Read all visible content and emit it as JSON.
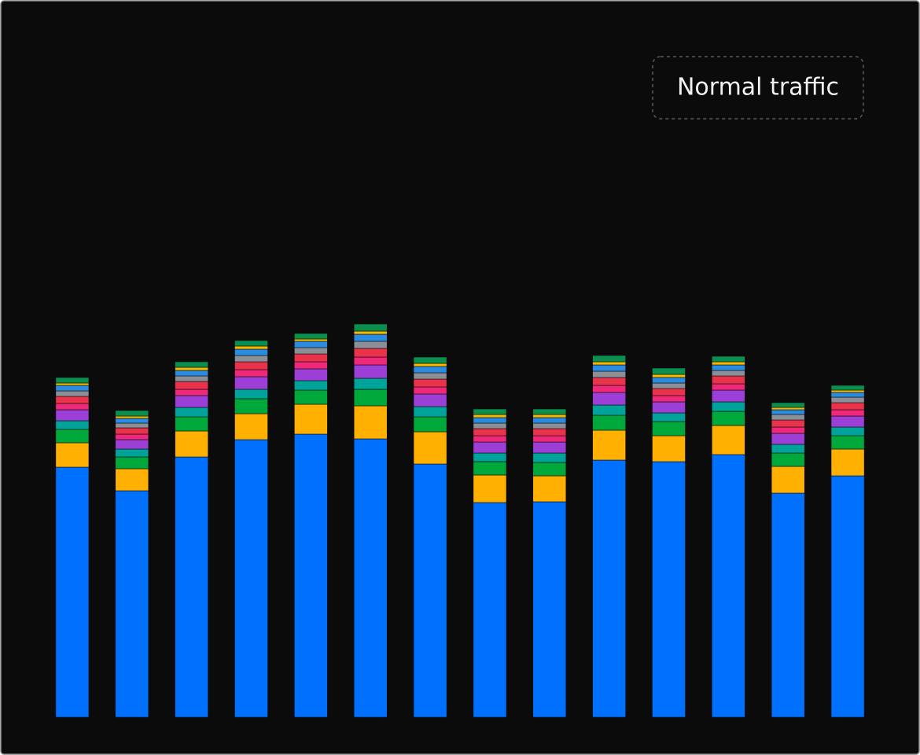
{
  "chart_data": {
    "type": "stacked_bar",
    "annotation": "Normal traffic",
    "categories": [
      null,
      null,
      null,
      null,
      null,
      null,
      null,
      null,
      null,
      null,
      null,
      null,
      null,
      null
    ],
    "ylim": [
      0,
      500
    ],
    "series": [
      {
        "color": "#0070ff",
        "values": [
          318,
          288,
          331,
          353,
          360,
          354,
          322,
          273,
          274,
          327,
          325,
          334,
          285,
          307
        ]
      },
      {
        "color": "#ffb000",
        "values": [
          31,
          28,
          33,
          33,
          38,
          42,
          41,
          35,
          33,
          38,
          33,
          37,
          34,
          34
        ]
      },
      {
        "color": "#00a83c",
        "values": [
          17,
          15,
          18,
          19,
          18,
          21,
          19,
          17,
          17,
          19,
          18,
          18,
          17,
          17
        ]
      },
      {
        "color": "#00a39a",
        "values": [
          11,
          10,
          12,
          12,
          12,
          14,
          13,
          11,
          12,
          13,
          11,
          12,
          11,
          11
        ]
      },
      {
        "color": "#9b3fd6",
        "values": [
          14,
          12,
          15,
          16,
          15,
          17,
          16,
          14,
          14,
          16,
          14,
          15,
          14,
          14
        ]
      },
      {
        "color": "#f0287a",
        "values": [
          8,
          7,
          8,
          9,
          9,
          10,
          9,
          8,
          8,
          9,
          8,
          8,
          8,
          8
        ]
      },
      {
        "color": "#e8334a",
        "values": [
          9,
          8,
          10,
          10,
          10,
          11,
          10,
          9,
          9,
          10,
          9,
          10,
          9,
          9
        ]
      },
      {
        "color": "#8a8f98",
        "values": [
          7,
          6,
          7,
          8,
          8,
          9,
          8,
          7,
          7,
          8,
          7,
          7,
          7,
          7
        ]
      },
      {
        "color": "#2a8ce0",
        "values": [
          7,
          6,
          7,
          8,
          8,
          9,
          8,
          7,
          7,
          8,
          7,
          7,
          6,
          6
        ]
      },
      {
        "color": "#f5b800",
        "values": [
          3,
          3,
          4,
          4,
          3,
          4,
          4,
          4,
          4,
          4,
          4,
          4,
          3,
          3
        ]
      },
      {
        "color": "#0a8f4e",
        "values": [
          7,
          7,
          7,
          7,
          7,
          9,
          8,
          7,
          7,
          8,
          8,
          7,
          6,
          6
        ]
      }
    ]
  }
}
